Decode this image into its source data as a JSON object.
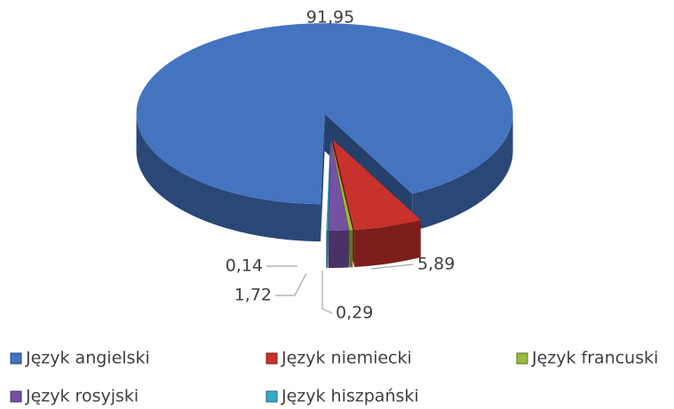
{
  "chart_data": {
    "type": "pie",
    "categories": [
      "Język angielski",
      "Język niemiecki",
      "Język francuski",
      "Język rosyjski",
      "Język hiszpański"
    ],
    "values": [
      91.95,
      5.89,
      0.29,
      1.72,
      0.14
    ],
    "value_labels": [
      "91,95",
      "5,89",
      "0,29",
      "1,72",
      "0,14"
    ],
    "colors": [
      "#4474c0",
      "#c9312d",
      "#9abb3a",
      "#7550a3",
      "#35a9c9"
    ],
    "legend": "bottom"
  }
}
